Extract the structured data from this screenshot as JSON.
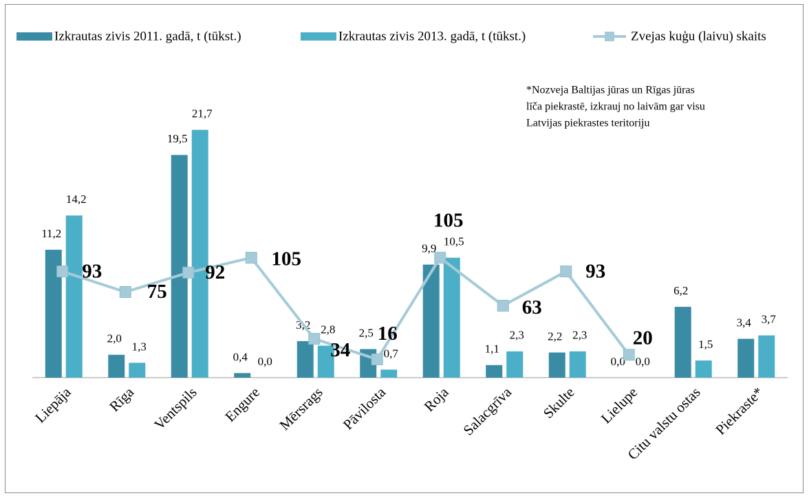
{
  "chart_data": {
    "type": "bar_line",
    "categories": [
      "Liepāja",
      "Rīga",
      "Ventspils",
      "Engure",
      "Mērsrags",
      "Pāvilosta",
      "Roja",
      "Salacgrīva",
      "Skulte",
      "Lielupe",
      "Citu valstu ostas",
      "Piekraste*"
    ],
    "series": [
      {
        "name": "Izkrautas zivis 2011. gadā, t (tūkst.)",
        "color": "#3a8ca4",
        "values": [
          11.2,
          2.0,
          19.5,
          0.4,
          3.2,
          2.5,
          9.9,
          1.1,
          2.2,
          0.0,
          6.2,
          3.4
        ],
        "value_labels": [
          "11,2",
          "2,0",
          "19,5",
          "0,4",
          "3,2",
          "2,5",
          "9,9",
          "1,1",
          "2,2",
          "0,0",
          "6,2",
          "3,4"
        ]
      },
      {
        "name": "Izkrautas zivis 2013. gadā, t (tūkst.)",
        "color": "#4bafc8",
        "values": [
          14.2,
          1.3,
          21.7,
          0.0,
          2.8,
          0.7,
          10.5,
          2.3,
          2.3,
          0.0,
          1.5,
          3.7
        ],
        "value_labels": [
          "14,2",
          "1,3",
          "21,7",
          "0,0",
          "2,8",
          "0,7",
          "10,5",
          "2,3",
          "2,3",
          "0,0",
          "1,5",
          "3,7"
        ]
      },
      {
        "name": "Zvejas kuģu (laivu) skaits",
        "color": "#a5cbd9",
        "axis": "y2",
        "type": "line",
        "values": [
          93,
          75,
          92,
          105,
          34,
          16,
          105,
          63,
          93,
          20,
          null,
          null
        ]
      }
    ],
    "annotation": [
      "*Nozveja Baltijas jūras un Rīgas jūras",
      "līča piekrastē, izkrauj no laivām gar visu",
      "Latvijas piekrastes teritoriju"
    ],
    "ylim": [
      0,
      25
    ],
    "y2lim": [
      0,
      250
    ],
    "legend": "top"
  }
}
